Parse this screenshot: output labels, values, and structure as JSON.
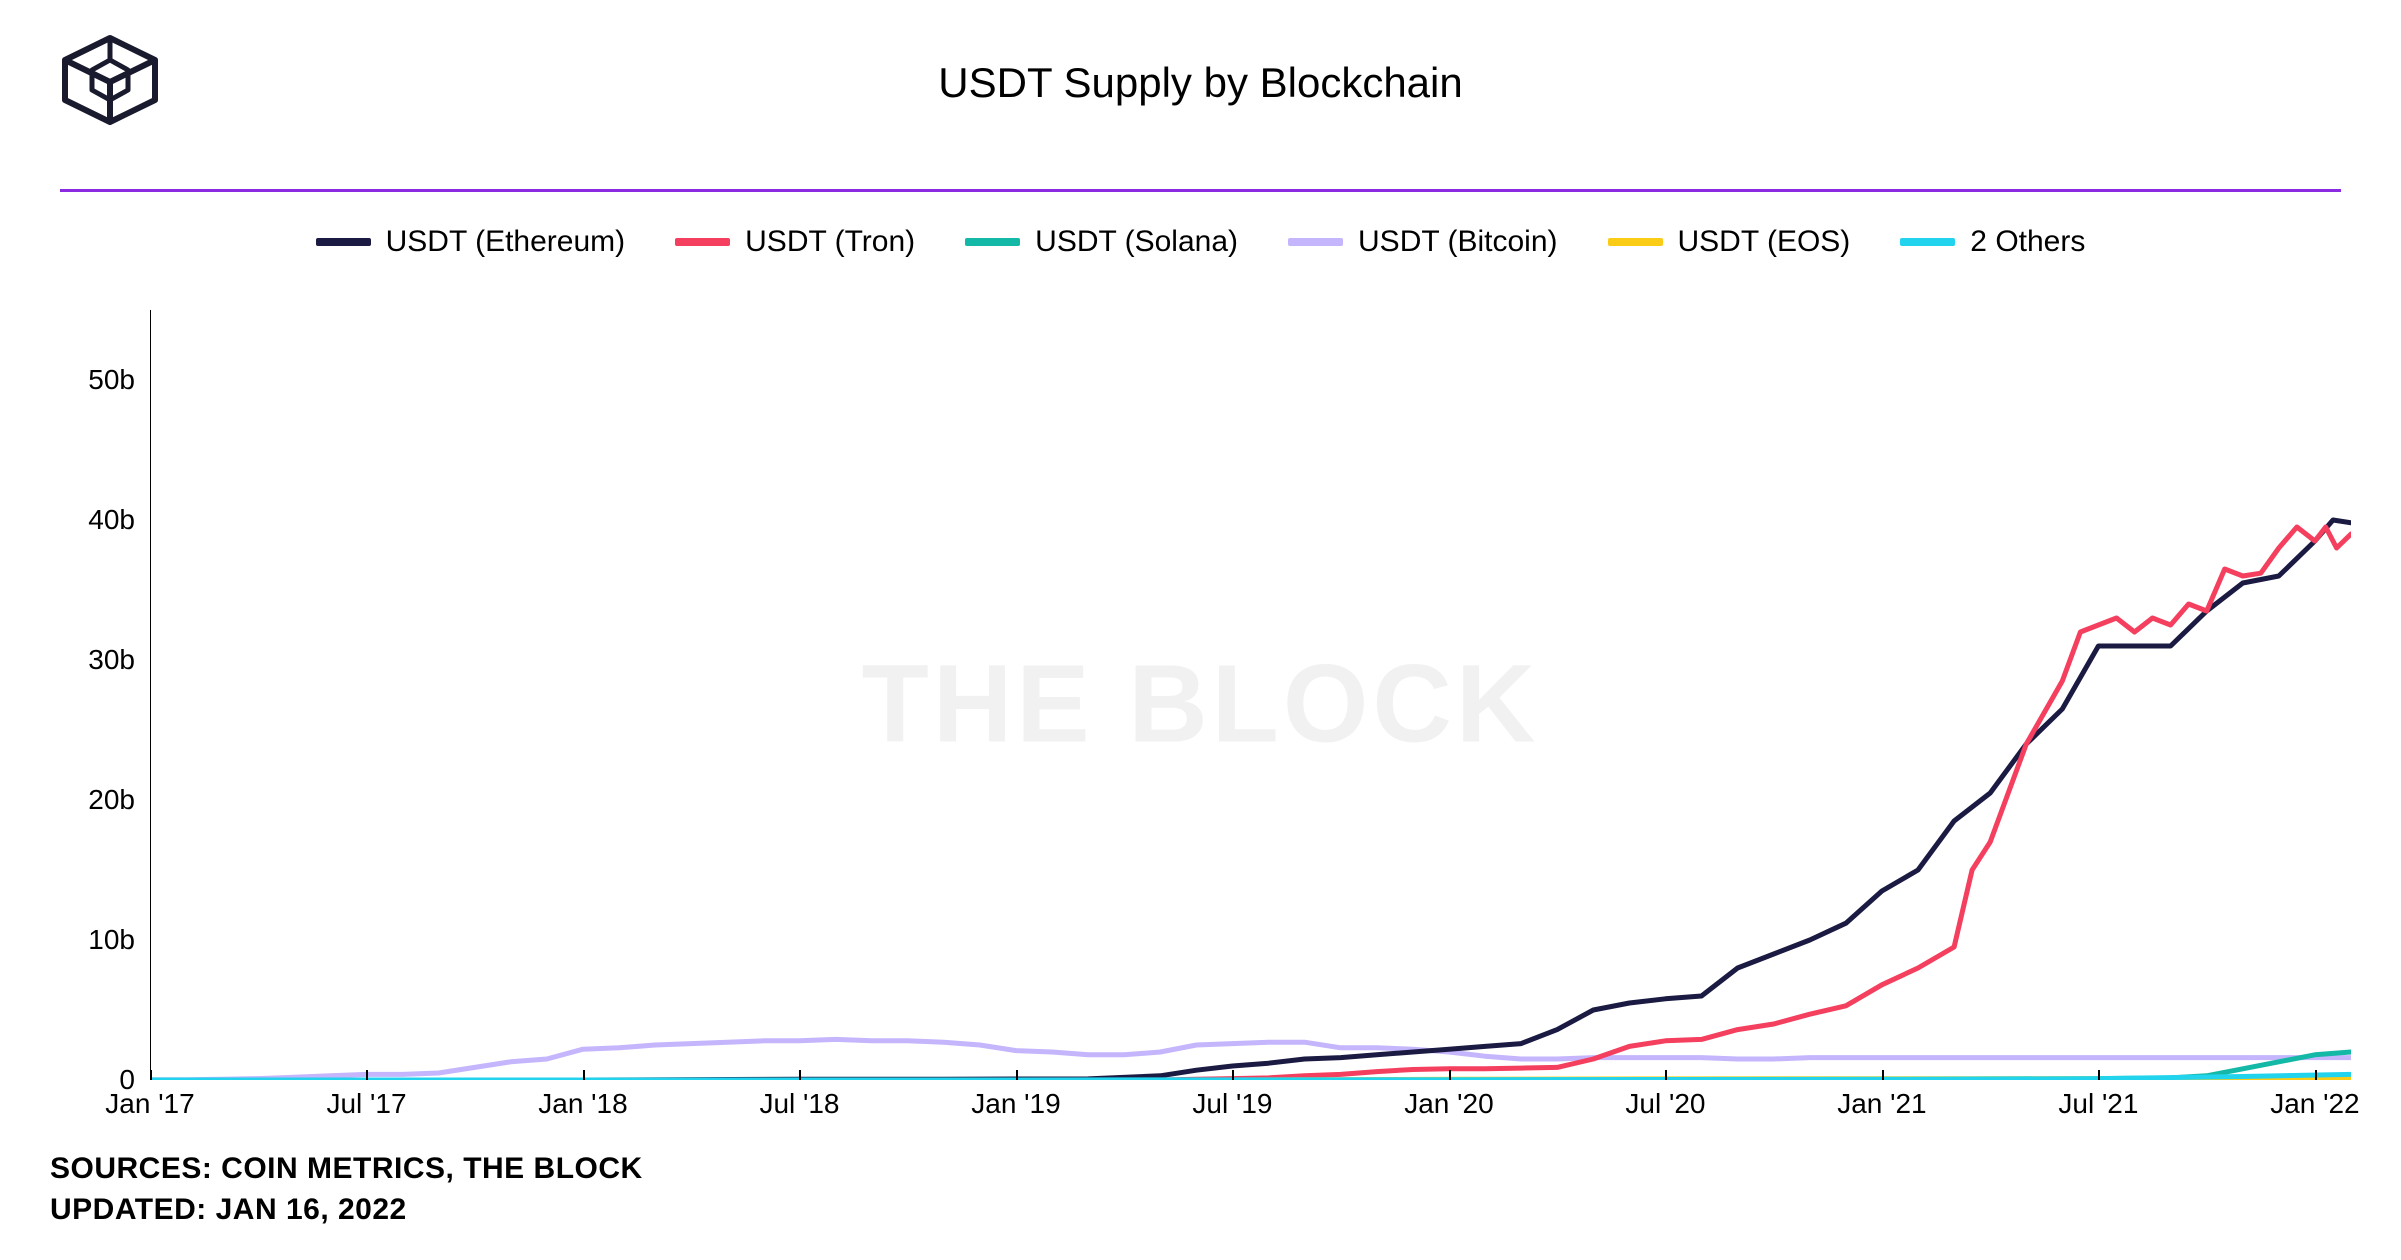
{
  "title": "USDT Supply by Blockchain",
  "watermark": "THE BLOCK",
  "divider_color": "#8a2be2",
  "logo_color": "#1a1a2e",
  "footer_sources": "SOURCES: COIN METRICS, THE BLOCK",
  "footer_updated": "UPDATED: JAN 16, 2022",
  "legend": [
    {
      "label": "USDT (Ethereum)",
      "color": "#1a1a42"
    },
    {
      "label": "USDT (Tron)",
      "color": "#f43f5e"
    },
    {
      "label": "USDT (Solana)",
      "color": "#14b8a6"
    },
    {
      "label": "USDT (Bitcoin)",
      "color": "#c4b5fd"
    },
    {
      "label": "USDT (EOS)",
      "color": "#facc15"
    },
    {
      "label": "2 Others",
      "color": "#22d3ee"
    }
  ],
  "chart": {
    "type": "line",
    "background": "#ffffff",
    "line_width": 5,
    "ylim": [
      0,
      55
    ],
    "yticks": [
      0,
      10,
      20,
      30,
      40,
      50
    ],
    "ytick_labels": [
      "0",
      "10b",
      "20b",
      "30b",
      "40b",
      "50b"
    ],
    "xlim": [
      0,
      61
    ],
    "xticks": [
      0,
      6,
      12,
      18,
      24,
      30,
      36,
      42,
      48,
      54,
      60
    ],
    "xtick_labels": [
      "Jan '17",
      "Jul '17",
      "Jan '18",
      "Jul '18",
      "Jan '19",
      "Jul '19",
      "Jan '20",
      "Jul '20",
      "Jan '21",
      "Jul '21",
      "Jan '22"
    ],
    "series": [
      {
        "name": "USDT (Bitcoin)",
        "color": "#c4b5fd",
        "points": [
          [
            0,
            0.02
          ],
          [
            1,
            0.02
          ],
          [
            2,
            0.05
          ],
          [
            3,
            0.1
          ],
          [
            4,
            0.2
          ],
          [
            5,
            0.3
          ],
          [
            6,
            0.4
          ],
          [
            7,
            0.4
          ],
          [
            8,
            0.5
          ],
          [
            9,
            0.9
          ],
          [
            10,
            1.3
          ],
          [
            11,
            1.5
          ],
          [
            12,
            2.2
          ],
          [
            13,
            2.3
          ],
          [
            14,
            2.5
          ],
          [
            15,
            2.6
          ],
          [
            16,
            2.7
          ],
          [
            17,
            2.8
          ],
          [
            18,
            2.8
          ],
          [
            19,
            2.9
          ],
          [
            20,
            2.8
          ],
          [
            21,
            2.8
          ],
          [
            22,
            2.7
          ],
          [
            23,
            2.5
          ],
          [
            24,
            2.1
          ],
          [
            25,
            2.0
          ],
          [
            26,
            1.8
          ],
          [
            27,
            1.8
          ],
          [
            28,
            2.0
          ],
          [
            29,
            2.5
          ],
          [
            30,
            2.6
          ],
          [
            31,
            2.7
          ],
          [
            32,
            2.7
          ],
          [
            33,
            2.3
          ],
          [
            34,
            2.3
          ],
          [
            35,
            2.2
          ],
          [
            36,
            2.0
          ],
          [
            37,
            1.7
          ],
          [
            38,
            1.5
          ],
          [
            39,
            1.5
          ],
          [
            40,
            1.6
          ],
          [
            41,
            1.6
          ],
          [
            42,
            1.6
          ],
          [
            43,
            1.6
          ],
          [
            44,
            1.5
          ],
          [
            45,
            1.5
          ],
          [
            46,
            1.6
          ],
          [
            47,
            1.6
          ],
          [
            48,
            1.6
          ],
          [
            49,
            1.6
          ],
          [
            50,
            1.6
          ],
          [
            51,
            1.6
          ],
          [
            52,
            1.6
          ],
          [
            53,
            1.6
          ],
          [
            54,
            1.6
          ],
          [
            55,
            1.6
          ],
          [
            56,
            1.6
          ],
          [
            57,
            1.6
          ],
          [
            58,
            1.6
          ],
          [
            59,
            1.6
          ],
          [
            60,
            1.6
          ],
          [
            61,
            1.6
          ]
        ]
      },
      {
        "name": "USDT (Ethereum)",
        "color": "#1a1a42",
        "points": [
          [
            0,
            0
          ],
          [
            6,
            0
          ],
          [
            12,
            0
          ],
          [
            18,
            0.05
          ],
          [
            22,
            0.06
          ],
          [
            24,
            0.07
          ],
          [
            26,
            0.08
          ],
          [
            28,
            0.3
          ],
          [
            29,
            0.7
          ],
          [
            30,
            1.0
          ],
          [
            31,
            1.2
          ],
          [
            32,
            1.5
          ],
          [
            33,
            1.6
          ],
          [
            34,
            1.8
          ],
          [
            35,
            2.0
          ],
          [
            36,
            2.2
          ],
          [
            37,
            2.4
          ],
          [
            38,
            2.6
          ],
          [
            39,
            3.6
          ],
          [
            40,
            5.0
          ],
          [
            41,
            5.5
          ],
          [
            42,
            5.8
          ],
          [
            43,
            6.0
          ],
          [
            44,
            8.0
          ],
          [
            45,
            9.0
          ],
          [
            46,
            10.0
          ],
          [
            47,
            11.2
          ],
          [
            48,
            13.5
          ],
          [
            49,
            15.0
          ],
          [
            50,
            18.5
          ],
          [
            51,
            20.5
          ],
          [
            52,
            24.0
          ],
          [
            53,
            26.5
          ],
          [
            54,
            31.0
          ],
          [
            55,
            31.0
          ],
          [
            56,
            31.0
          ],
          [
            57,
            33.5
          ],
          [
            58,
            35.5
          ],
          [
            59,
            36.0
          ],
          [
            60,
            38.5
          ],
          [
            60.5,
            40.0
          ],
          [
            61,
            39.8
          ]
        ]
      },
      {
        "name": "USDT (Tron)",
        "color": "#f43f5e",
        "points": [
          [
            28,
            0
          ],
          [
            29,
            0.05
          ],
          [
            30,
            0.1
          ],
          [
            31,
            0.15
          ],
          [
            32,
            0.3
          ],
          [
            33,
            0.4
          ],
          [
            34,
            0.6
          ],
          [
            35,
            0.75
          ],
          [
            36,
            0.8
          ],
          [
            37,
            0.8
          ],
          [
            38,
            0.85
          ],
          [
            39,
            0.9
          ],
          [
            40,
            1.5
          ],
          [
            41,
            2.4
          ],
          [
            42,
            2.8
          ],
          [
            43,
            2.9
          ],
          [
            44,
            3.6
          ],
          [
            45,
            4.0
          ],
          [
            46,
            4.7
          ],
          [
            47,
            5.3
          ],
          [
            48,
            6.8
          ],
          [
            49,
            8.0
          ],
          [
            50,
            9.5
          ],
          [
            50.5,
            15.0
          ],
          [
            51,
            17.0
          ],
          [
            52,
            24.0
          ],
          [
            53,
            28.5
          ],
          [
            53.5,
            32.0
          ],
          [
            54,
            32.5
          ],
          [
            54.5,
            33.0
          ],
          [
            55,
            32.0
          ],
          [
            55.5,
            33.0
          ],
          [
            56,
            32.5
          ],
          [
            56.5,
            34.0
          ],
          [
            57,
            33.5
          ],
          [
            57.5,
            36.5
          ],
          [
            58,
            36.0
          ],
          [
            58.5,
            36.2
          ],
          [
            59,
            38.0
          ],
          [
            59.5,
            39.5
          ],
          [
            60,
            38.5
          ],
          [
            60.3,
            39.5
          ],
          [
            60.6,
            38.0
          ],
          [
            61,
            39.0
          ]
        ]
      },
      {
        "name": "USDT (Solana)",
        "color": "#14b8a6",
        "points": [
          [
            48,
            0
          ],
          [
            50,
            0
          ],
          [
            52,
            0.05
          ],
          [
            54,
            0.1
          ],
          [
            56,
            0.15
          ],
          [
            57,
            0.3
          ],
          [
            58,
            0.8
          ],
          [
            59,
            1.3
          ],
          [
            60,
            1.8
          ],
          [
            61,
            2.0
          ]
        ]
      },
      {
        "name": "USDT (EOS)",
        "color": "#facc15",
        "points": [
          [
            30,
            0
          ],
          [
            36,
            0.05
          ],
          [
            42,
            0.08
          ],
          [
            48,
            0.09
          ],
          [
            54,
            0.1
          ],
          [
            61,
            0.1
          ]
        ]
      },
      {
        "name": "2 Others",
        "color": "#22d3ee",
        "points": [
          [
            0,
            0
          ],
          [
            12,
            0
          ],
          [
            24,
            0
          ],
          [
            36,
            0.02
          ],
          [
            48,
            0.05
          ],
          [
            54,
            0.1
          ],
          [
            58,
            0.25
          ],
          [
            61,
            0.4
          ]
        ]
      }
    ]
  }
}
